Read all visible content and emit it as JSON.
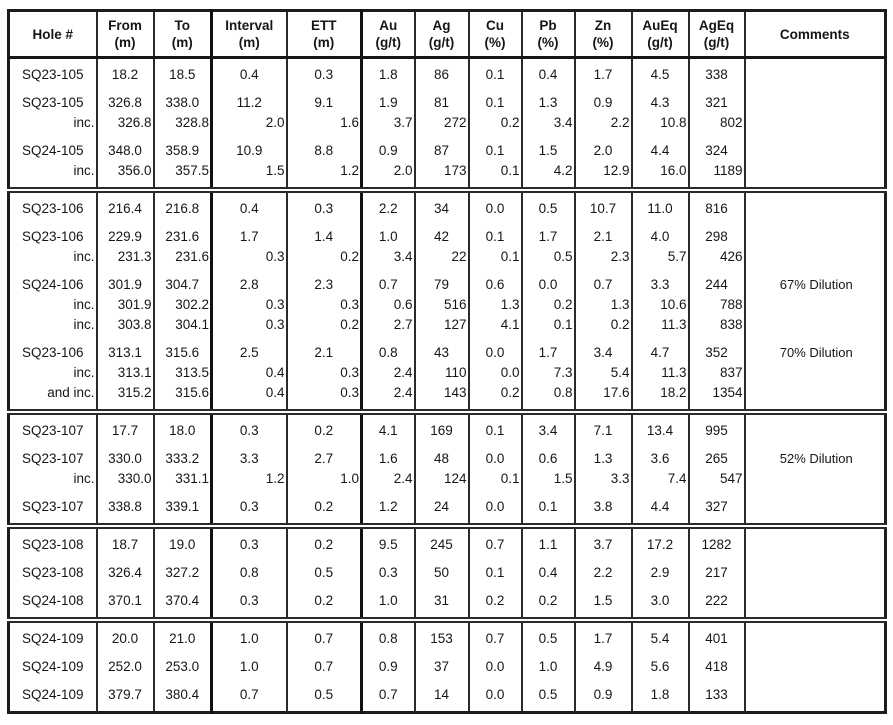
{
  "table": {
    "title": "Drill hole assay results table",
    "headers": [
      {
        "label": "Hole #",
        "unit": ""
      },
      {
        "label": "From",
        "unit": "(m)"
      },
      {
        "label": "To",
        "unit": "(m)"
      },
      {
        "label": "Interval",
        "unit": "(m)"
      },
      {
        "label": "ETT",
        "unit": "(m)"
      },
      {
        "label": "Au",
        "unit": "(g/t)"
      },
      {
        "label": "Ag",
        "unit": "(g/t)"
      },
      {
        "label": "Cu",
        "unit": "(%)"
      },
      {
        "label": "Pb",
        "unit": "(%)"
      },
      {
        "label": "Zn",
        "unit": "(%)"
      },
      {
        "label": "AuEq",
        "unit": "(g/t)"
      },
      {
        "label": "AgEq",
        "unit": "(g/t)"
      },
      {
        "label": "Comments",
        "unit": ""
      }
    ],
    "groups": [
      {
        "rows": [
          {
            "type": "main",
            "hole": "SQ23-105",
            "from": "18.2",
            "to": "18.5",
            "interval": "0.4",
            "ett": "0.3",
            "au": "1.8",
            "ag": "86",
            "cu": "0.1",
            "pb": "0.4",
            "zn": "1.7",
            "aueq": "4.5",
            "ageq": "338",
            "comment": ""
          },
          {
            "type": "main",
            "hole": "SQ23-105",
            "from": "326.8",
            "to": "338.0",
            "interval": "11.2",
            "ett": "9.1",
            "au": "1.9",
            "ag": "81",
            "cu": "0.1",
            "pb": "1.3",
            "zn": "0.9",
            "aueq": "4.3",
            "ageq": "321",
            "comment": ""
          },
          {
            "type": "inc",
            "hole": "inc.",
            "from": "326.8",
            "to": "328.8",
            "interval": "2.0",
            "ett": "1.6",
            "au": "3.7",
            "ag": "272",
            "cu": "0.2",
            "pb": "3.4",
            "zn": "2.2",
            "aueq": "10.8",
            "ageq": "802",
            "comment": ""
          },
          {
            "type": "main",
            "hole": "SQ24-105",
            "from": "348.0",
            "to": "358.9",
            "interval": "10.9",
            "ett": "8.8",
            "au": "0.9",
            "ag": "87",
            "cu": "0.1",
            "pb": "1.5",
            "zn": "2.0",
            "aueq": "4.4",
            "ageq": "324",
            "comment": ""
          },
          {
            "type": "inc",
            "hole": "inc.",
            "from": "356.0",
            "to": "357.5",
            "interval": "1.5",
            "ett": "1.2",
            "au": "2.0",
            "ag": "173",
            "cu": "0.1",
            "pb": "4.2",
            "zn": "12.9",
            "aueq": "16.0",
            "ageq": "1189",
            "comment": ""
          }
        ]
      },
      {
        "rows": [
          {
            "type": "main",
            "hole": "SQ23-106",
            "from": "216.4",
            "to": "216.8",
            "interval": "0.4",
            "ett": "0.3",
            "au": "2.2",
            "ag": "34",
            "cu": "0.0",
            "pb": "0.5",
            "zn": "10.7",
            "aueq": "11.0",
            "ageq": "816",
            "comment": ""
          },
          {
            "type": "main",
            "hole": "SQ23-106",
            "from": "229.9",
            "to": "231.6",
            "interval": "1.7",
            "ett": "1.4",
            "au": "1.0",
            "ag": "42",
            "cu": "0.1",
            "pb": "1.7",
            "zn": "2.1",
            "aueq": "4.0",
            "ageq": "298",
            "comment": ""
          },
          {
            "type": "inc",
            "hole": "inc.",
            "from": "231.3",
            "to": "231.6",
            "interval": "0.3",
            "ett": "0.2",
            "au": "3.4",
            "ag": "22",
            "cu": "0.1",
            "pb": "0.5",
            "zn": "2.3",
            "aueq": "5.7",
            "ageq": "426",
            "comment": ""
          },
          {
            "type": "main",
            "hole": "SQ24-106",
            "from": "301.9",
            "to": "304.7",
            "interval": "2.8",
            "ett": "2.3",
            "au": "0.7",
            "ag": "79",
            "cu": "0.6",
            "pb": "0.0",
            "zn": "0.7",
            "aueq": "3.3",
            "ageq": "244",
            "comment": "67% Dilution"
          },
          {
            "type": "inc",
            "hole": "inc.",
            "from": "301.9",
            "to": "302.2",
            "interval": "0.3",
            "ett": "0.3",
            "au": "0.6",
            "ag": "516",
            "cu": "1.3",
            "pb": "0.2",
            "zn": "1.3",
            "aueq": "10.6",
            "ageq": "788",
            "comment": ""
          },
          {
            "type": "inc",
            "hole": "inc.",
            "from": "303.8",
            "to": "304.1",
            "interval": "0.3",
            "ett": "0.2",
            "au": "2.7",
            "ag": "127",
            "cu": "4.1",
            "pb": "0.1",
            "zn": "0.2",
            "aueq": "11.3",
            "ageq": "838",
            "comment": ""
          },
          {
            "type": "main",
            "hole": "SQ23-106",
            "from": "313.1",
            "to": "315.6",
            "interval": "2.5",
            "ett": "2.1",
            "au": "0.8",
            "ag": "43",
            "cu": "0.0",
            "pb": "1.7",
            "zn": "3.4",
            "aueq": "4.7",
            "ageq": "352",
            "comment": "70% Dilution"
          },
          {
            "type": "inc",
            "hole": "inc.",
            "from": "313.1",
            "to": "313.5",
            "interval": "0.4",
            "ett": "0.3",
            "au": "2.4",
            "ag": "110",
            "cu": "0.0",
            "pb": "7.3",
            "zn": "5.4",
            "aueq": "11.3",
            "ageq": "837",
            "comment": ""
          },
          {
            "type": "inc",
            "hole": "and inc.",
            "from": "315.2",
            "to": "315.6",
            "interval": "0.4",
            "ett": "0.3",
            "au": "2.4",
            "ag": "143",
            "cu": "0.2",
            "pb": "0.8",
            "zn": "17.6",
            "aueq": "18.2",
            "ageq": "1354",
            "comment": ""
          }
        ]
      },
      {
        "rows": [
          {
            "type": "main",
            "hole": "SQ23-107",
            "from": "17.7",
            "to": "18.0",
            "interval": "0.3",
            "ett": "0.2",
            "au": "4.1",
            "ag": "169",
            "cu": "0.1",
            "pb": "3.4",
            "zn": "7.1",
            "aueq": "13.4",
            "ageq": "995",
            "comment": ""
          },
          {
            "type": "main",
            "hole": "SQ23-107",
            "from": "330.0",
            "to": "333.2",
            "interval": "3.3",
            "ett": "2.7",
            "au": "1.6",
            "ag": "48",
            "cu": "0.0",
            "pb": "0.6",
            "zn": "1.3",
            "aueq": "3.6",
            "ageq": "265",
            "comment": "52% Dilution"
          },
          {
            "type": "inc",
            "hole": "inc.",
            "from": "330.0",
            "to": "331.1",
            "interval": "1.2",
            "ett": "1.0",
            "au": "2.4",
            "ag": "124",
            "cu": "0.1",
            "pb": "1.5",
            "zn": "3.3",
            "aueq": "7.4",
            "ageq": "547",
            "comment": ""
          },
          {
            "type": "main",
            "hole": "SQ23-107",
            "from": "338.8",
            "to": "339.1",
            "interval": "0.3",
            "ett": "0.2",
            "au": "1.2",
            "ag": "24",
            "cu": "0.0",
            "pb": "0.1",
            "zn": "3.8",
            "aueq": "4.4",
            "ageq": "327",
            "comment": ""
          }
        ]
      },
      {
        "rows": [
          {
            "type": "main",
            "hole": "SQ23-108",
            "from": "18.7",
            "to": "19.0",
            "interval": "0.3",
            "ett": "0.2",
            "au": "9.5",
            "ag": "245",
            "cu": "0.7",
            "pb": "1.1",
            "zn": "3.7",
            "aueq": "17.2",
            "ageq": "1282",
            "comment": ""
          },
          {
            "type": "main",
            "hole": "SQ23-108",
            "from": "326.4",
            "to": "327.2",
            "interval": "0.8",
            "ett": "0.5",
            "au": "0.3",
            "ag": "50",
            "cu": "0.1",
            "pb": "0.4",
            "zn": "2.2",
            "aueq": "2.9",
            "ageq": "217",
            "comment": ""
          },
          {
            "type": "main",
            "hole": "SQ24-108",
            "from": "370.1",
            "to": "370.4",
            "interval": "0.3",
            "ett": "0.2",
            "au": "1.0",
            "ag": "31",
            "cu": "0.2",
            "pb": "0.2",
            "zn": "1.5",
            "aueq": "3.0",
            "ageq": "222",
            "comment": ""
          }
        ]
      },
      {
        "rows": [
          {
            "type": "main",
            "hole": "SQ24-109",
            "from": "20.0",
            "to": "21.0",
            "interval": "1.0",
            "ett": "0.7",
            "au": "0.8",
            "ag": "153",
            "cu": "0.7",
            "pb": "0.5",
            "zn": "1.7",
            "aueq": "5.4",
            "ageq": "401",
            "comment": ""
          },
          {
            "type": "main",
            "hole": "SQ24-109",
            "from": "252.0",
            "to": "253.0",
            "interval": "1.0",
            "ett": "0.7",
            "au": "0.9",
            "ag": "37",
            "cu": "0.0",
            "pb": "1.0",
            "zn": "4.9",
            "aueq": "5.6",
            "ageq": "418",
            "comment": ""
          },
          {
            "type": "main",
            "hole": "SQ24-109",
            "from": "379.7",
            "to": "380.4",
            "interval": "0.7",
            "ett": "0.5",
            "au": "0.7",
            "ag": "14",
            "cu": "0.0",
            "pb": "0.5",
            "zn": "0.9",
            "aueq": "1.8",
            "ageq": "133",
            "comment": ""
          }
        ]
      }
    ]
  }
}
